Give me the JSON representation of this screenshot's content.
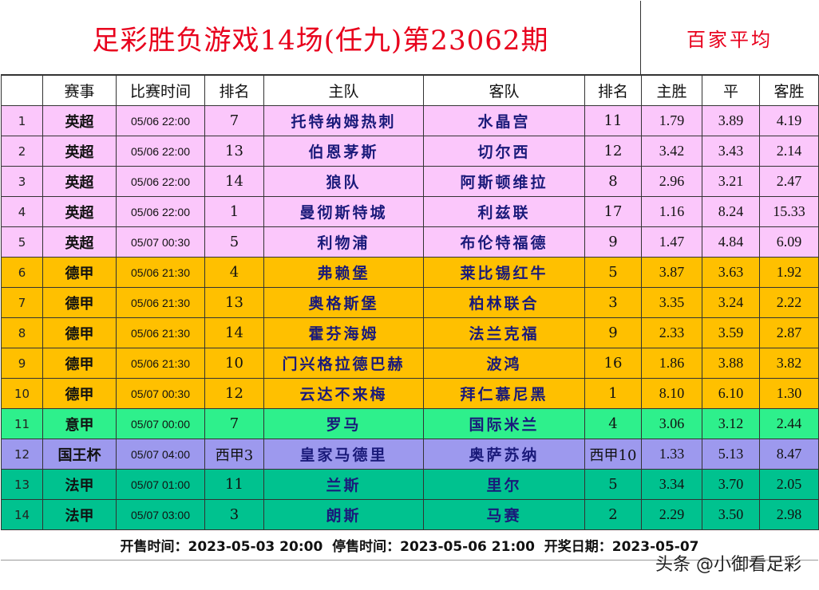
{
  "title": "足彩胜负游戏14场(任九)第23062期",
  "avg_title": "百家平均",
  "headers": [
    "",
    "赛事",
    "比赛时间",
    "排名",
    "主队",
    "客队",
    "排名",
    "主胜",
    "平",
    "客胜"
  ],
  "rows": [
    {
      "no": "1",
      "league": "英超",
      "time": "05/06 22:00",
      "home_rank": "7",
      "home": "托特纳姆热刺",
      "away": "水晶宫",
      "away_rank": "11",
      "win": "1.79",
      "draw": "3.89",
      "lose": "4.19",
      "class": "epl"
    },
    {
      "no": "2",
      "league": "英超",
      "time": "05/06 22:00",
      "home_rank": "13",
      "home": "伯恩茅斯",
      "away": "切尔西",
      "away_rank": "12",
      "win": "3.42",
      "draw": "3.43",
      "lose": "2.14",
      "class": "epl"
    },
    {
      "no": "3",
      "league": "英超",
      "time": "05/06 22:00",
      "home_rank": "14",
      "home": "狼队",
      "away": "阿斯顿维拉",
      "away_rank": "8",
      "win": "2.96",
      "draw": "3.21",
      "lose": "2.47",
      "class": "epl"
    },
    {
      "no": "4",
      "league": "英超",
      "time": "05/06 22:00",
      "home_rank": "1",
      "home": "曼彻斯特城",
      "away": "利兹联",
      "away_rank": "17",
      "win": "1.16",
      "draw": "8.24",
      "lose": "15.33",
      "class": "epl"
    },
    {
      "no": "5",
      "league": "英超",
      "time": "05/07 00:30",
      "home_rank": "5",
      "home": "利物浦",
      "away": "布伦特福德",
      "away_rank": "9",
      "win": "1.47",
      "draw": "4.84",
      "lose": "6.09",
      "class": "epl"
    },
    {
      "no": "6",
      "league": "德甲",
      "time": "05/06 21:30",
      "home_rank": "4",
      "home": "弗赖堡",
      "away": "莱比锡红牛",
      "away_rank": "5",
      "win": "3.87",
      "draw": "3.63",
      "lose": "1.92",
      "class": "bundes"
    },
    {
      "no": "7",
      "league": "德甲",
      "time": "05/06 21:30",
      "home_rank": "13",
      "home": "奥格斯堡",
      "away": "柏林联合",
      "away_rank": "3",
      "win": "3.35",
      "draw": "3.24",
      "lose": "2.22",
      "class": "bundes"
    },
    {
      "no": "8",
      "league": "德甲",
      "time": "05/06 21:30",
      "home_rank": "14",
      "home": "霍芬海姆",
      "away": "法兰克福",
      "away_rank": "9",
      "win": "2.33",
      "draw": "3.59",
      "lose": "2.87",
      "class": "bundes"
    },
    {
      "no": "9",
      "league": "德甲",
      "time": "05/06 21:30",
      "home_rank": "10",
      "home": "门兴格拉德巴赫",
      "away": "波鸿",
      "away_rank": "16",
      "win": "1.86",
      "draw": "3.88",
      "lose": "3.82",
      "class": "bundes"
    },
    {
      "no": "10",
      "league": "德甲",
      "time": "05/07 00:30",
      "home_rank": "12",
      "home": "云达不来梅",
      "away": "拜仁慕尼黑",
      "away_rank": "1",
      "win": "8.10",
      "draw": "6.10",
      "lose": "1.30",
      "class": "bundes"
    },
    {
      "no": "11",
      "league": "意甲",
      "time": "05/07 00:00",
      "home_rank": "7",
      "home": "罗马",
      "away": "国际米兰",
      "away_rank": "4",
      "win": "3.06",
      "draw": "3.12",
      "lose": "2.44",
      "class": "seriea"
    },
    {
      "no": "12",
      "league": "国王杯",
      "time": "05/07 04:00",
      "home_rank": "西甲3",
      "home": "皇家马德里",
      "away": "奥萨苏纳",
      "away_rank": "西甲10",
      "win": "1.33",
      "draw": "5.13",
      "lose": "8.47",
      "class": "cup"
    },
    {
      "no": "13",
      "league": "法甲",
      "time": "05/07 01:00",
      "home_rank": "11",
      "home": "兰斯",
      "away": "里尔",
      "away_rank": "5",
      "win": "3.34",
      "draw": "3.70",
      "lose": "2.05",
      "class": "ligue1"
    },
    {
      "no": "14",
      "league": "法甲",
      "time": "05/07 03:00",
      "home_rank": "3",
      "home": "朗斯",
      "away": "马赛",
      "away_rank": "2",
      "win": "2.29",
      "draw": "3.50",
      "lose": "2.98",
      "class": "ligue1"
    }
  ],
  "footer": {
    "sale_start": "开售时间：2023-05-03 20:00",
    "sale_stop": "停售时间：2023-05-06 21:00",
    "draw_date": "开奖日期：2023-05-07"
  },
  "watermark": "头条 @小御看足彩",
  "colors": {
    "title": "#e8001c",
    "epl": "#fbc7fb",
    "bundes": "#ffc000",
    "seriea": "#2ef08c",
    "cup": "#9d99ee",
    "ligue1": "#00c28f"
  }
}
